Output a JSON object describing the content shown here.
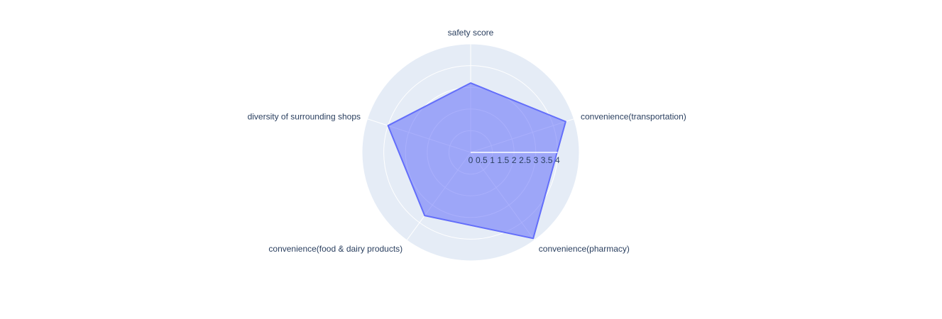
{
  "chart_data": {
    "type": "radar",
    "categories": [
      "safety score",
      "convenience(transportation)",
      "convenience(pharmacy)",
      "convenience(food & dairy products)",
      "diversity of surrounding shops"
    ],
    "values": [
      3.2,
      4.6,
      4.9,
      3.6,
      4.0
    ],
    "radial_range": [
      0,
      5
    ],
    "radial_tick_labels": [
      "0",
      "0.5",
      "1",
      "1.5",
      "2",
      "2.5",
      "3",
      "3.5",
      "4"
    ],
    "grid": true,
    "colors": {
      "fill": "rgba(99,110,250,0.55)",
      "line": "#636efa",
      "polar_bg": "#e5ecf6",
      "grid": "#ffffff",
      "text": "#2a3f5f"
    }
  }
}
